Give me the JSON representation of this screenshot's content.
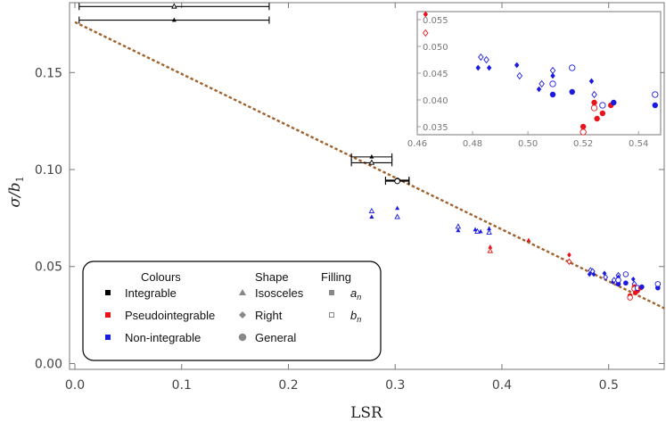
{
  "chart_data": {
    "type": "scatter",
    "title": "",
    "xlabel": "LSR",
    "ylabel_main": "σ/b",
    "ylabel_sub": "1",
    "xlim": [
      -0.005,
      0.552
    ],
    "ylim": [
      -0.003,
      0.186
    ],
    "xticks": [
      0.0,
      0.1,
      0.2,
      0.3,
      0.4,
      0.5
    ],
    "xtick_labels": [
      "0.0",
      "0.1",
      "0.2",
      "0.3",
      "0.4",
      "0.5"
    ],
    "yticks": [
      0.0,
      0.05,
      0.1,
      0.15
    ],
    "ytick_labels": [
      "0.00",
      "0.05",
      "0.10",
      "0.15"
    ],
    "colors": {
      "integrable": "#000000",
      "pseudo": "#e8141a",
      "nonint": "#1a1ae0",
      "fit": "#a0622c"
    },
    "fit_line": {
      "x": [
        0.0,
        0.552
      ],
      "y": [
        0.176,
        0.0285
      ]
    },
    "points": [
      {
        "x": 0.093,
        "y": 0.177,
        "c": "integrable",
        "s": "tri",
        "f": "a",
        "ex": 0.089
      },
      {
        "x": 0.093,
        "y": 0.184,
        "c": "integrable",
        "s": "tri",
        "f": "b",
        "ex": 0.089
      },
      {
        "x": 0.278,
        "y": 0.1065,
        "c": "integrable",
        "s": "tri",
        "f": "a",
        "ex": 0.019
      },
      {
        "x": 0.278,
        "y": 0.1035,
        "c": "integrable",
        "s": "tri",
        "f": "b",
        "ex": 0.019
      },
      {
        "x": 0.302,
        "y": 0.0945,
        "c": "integrable",
        "s": "circ",
        "f": "a",
        "ex": 0.011
      },
      {
        "x": 0.302,
        "y": 0.094,
        "c": "integrable",
        "s": "circ",
        "f": "b",
        "ex": 0.011
      },
      {
        "x": 0.278,
        "y": 0.0755,
        "c": "nonint",
        "s": "tri",
        "f": "a"
      },
      {
        "x": 0.278,
        "y": 0.0785,
        "c": "nonint",
        "s": "tri",
        "f": "b"
      },
      {
        "x": 0.302,
        "y": 0.08,
        "c": "nonint",
        "s": "tri",
        "f": "a"
      },
      {
        "x": 0.302,
        "y": 0.0755,
        "c": "nonint",
        "s": "tri",
        "f": "b"
      },
      {
        "x": 0.359,
        "y": 0.0685,
        "c": "nonint",
        "s": "tri",
        "f": "a"
      },
      {
        "x": 0.359,
        "y": 0.0705,
        "c": "nonint",
        "s": "tri",
        "f": "b"
      },
      {
        "x": 0.375,
        "y": 0.069,
        "c": "nonint",
        "s": "tri",
        "f": "a"
      },
      {
        "x": 0.377,
        "y": 0.068,
        "c": "nonint",
        "s": "tri",
        "f": "b"
      },
      {
        "x": 0.38,
        "y": 0.068,
        "c": "nonint",
        "s": "tri",
        "f": "a"
      },
      {
        "x": 0.388,
        "y": 0.0695,
        "c": "nonint",
        "s": "tri",
        "f": "a"
      },
      {
        "x": 0.388,
        "y": 0.0675,
        "c": "nonint",
        "s": "tri",
        "f": "b"
      },
      {
        "x": 0.389,
        "y": 0.06,
        "c": "pseudo",
        "s": "tri",
        "f": "a"
      },
      {
        "x": 0.389,
        "y": 0.058,
        "c": "pseudo",
        "s": "tri",
        "f": "b"
      },
      {
        "x": 0.425,
        "y": 0.0635,
        "c": "pseudo",
        "s": "tri",
        "f": "a"
      },
      {
        "x": 0.463,
        "y": 0.056,
        "c": "pseudo",
        "s": "dia",
        "f": "a"
      },
      {
        "x": 0.463,
        "y": 0.0525,
        "c": "pseudo",
        "s": "dia",
        "f": "b"
      },
      {
        "x": 0.482,
        "y": 0.046,
        "c": "nonint",
        "s": "dia",
        "f": "a"
      },
      {
        "x": 0.483,
        "y": 0.048,
        "c": "nonint",
        "s": "dia",
        "f": "b"
      },
      {
        "x": 0.485,
        "y": 0.0475,
        "c": "nonint",
        "s": "dia",
        "f": "b"
      },
      {
        "x": 0.486,
        "y": 0.046,
        "c": "nonint",
        "s": "dia",
        "f": "a"
      },
      {
        "x": 0.496,
        "y": 0.0465,
        "c": "nonint",
        "s": "dia",
        "f": "a"
      },
      {
        "x": 0.497,
        "y": 0.0445,
        "c": "nonint",
        "s": "dia",
        "f": "b"
      },
      {
        "x": 0.504,
        "y": 0.042,
        "c": "nonint",
        "s": "dia",
        "f": "a"
      },
      {
        "x": 0.505,
        "y": 0.043,
        "c": "nonint",
        "s": "dia",
        "f": "b"
      },
      {
        "x": 0.509,
        "y": 0.0455,
        "c": "nonint",
        "s": "dia",
        "f": "b"
      },
      {
        "x": 0.509,
        "y": 0.0445,
        "c": "nonint",
        "s": "dia",
        "f": "a"
      },
      {
        "x": 0.509,
        "y": 0.041,
        "c": "nonint",
        "s": "circ",
        "f": "a"
      },
      {
        "x": 0.509,
        "y": 0.043,
        "c": "nonint",
        "s": "circ",
        "f": "b"
      },
      {
        "x": 0.516,
        "y": 0.0415,
        "c": "nonint",
        "s": "circ",
        "f": "a"
      },
      {
        "x": 0.516,
        "y": 0.046,
        "c": "nonint",
        "s": "circ",
        "f": "b"
      },
      {
        "x": 0.52,
        "y": 0.035,
        "c": "pseudo",
        "s": "circ",
        "f": "a"
      },
      {
        "x": 0.52,
        "y": 0.034,
        "c": "pseudo",
        "s": "circ",
        "f": "b"
      },
      {
        "x": 0.523,
        "y": 0.0435,
        "c": "nonint",
        "s": "dia",
        "f": "a"
      },
      {
        "x": 0.524,
        "y": 0.041,
        "c": "nonint",
        "s": "dia",
        "f": "b"
      },
      {
        "x": 0.524,
        "y": 0.0395,
        "c": "pseudo",
        "s": "circ",
        "f": "a"
      },
      {
        "x": 0.524,
        "y": 0.0385,
        "c": "pseudo",
        "s": "circ",
        "f": "b"
      },
      {
        "x": 0.525,
        "y": 0.0365,
        "c": "pseudo",
        "s": "circ",
        "f": "a"
      },
      {
        "x": 0.527,
        "y": 0.0375,
        "c": "pseudo",
        "s": "circ",
        "f": "a"
      },
      {
        "x": 0.527,
        "y": 0.039,
        "c": "nonint",
        "s": "circ",
        "f": "b"
      },
      {
        "x": 0.53,
        "y": 0.039,
        "c": "pseudo",
        "s": "circ",
        "f": "a"
      },
      {
        "x": 0.531,
        "y": 0.0395,
        "c": "nonint",
        "s": "circ",
        "f": "a"
      },
      {
        "x": 0.546,
        "y": 0.039,
        "c": "nonint",
        "s": "circ",
        "f": "a"
      },
      {
        "x": 0.546,
        "y": 0.041,
        "c": "nonint",
        "s": "circ",
        "f": "b"
      }
    ],
    "inset": {
      "xlim": [
        0.46,
        0.548
      ],
      "ylim": [
        0.0335,
        0.0565
      ],
      "xticks": [
        0.46,
        0.48,
        0.5,
        0.52,
        0.54
      ],
      "xtick_labels": [
        "0.46",
        "0.48",
        "0.50",
        "0.52",
        "0.54"
      ],
      "yticks": [
        0.035,
        0.04,
        0.045,
        0.05,
        0.055
      ],
      "ytick_labels": [
        "0.035",
        "0.040",
        "0.045",
        "0.050",
        "0.055"
      ],
      "x_threshold": 0.46
    },
    "legend": {
      "placement": "bottom-left",
      "headers": {
        "colours": "Colours",
        "shape": "Shape",
        "filling": "Filling"
      },
      "colours": [
        "Integrable",
        "Pseudointegrable",
        "Non-integrable"
      ],
      "shapes": [
        "Isosceles",
        "Right",
        "General"
      ],
      "fillings": [
        {
          "main": "a",
          "sub": "n"
        },
        {
          "main": "b",
          "sub": "n"
        }
      ]
    }
  }
}
